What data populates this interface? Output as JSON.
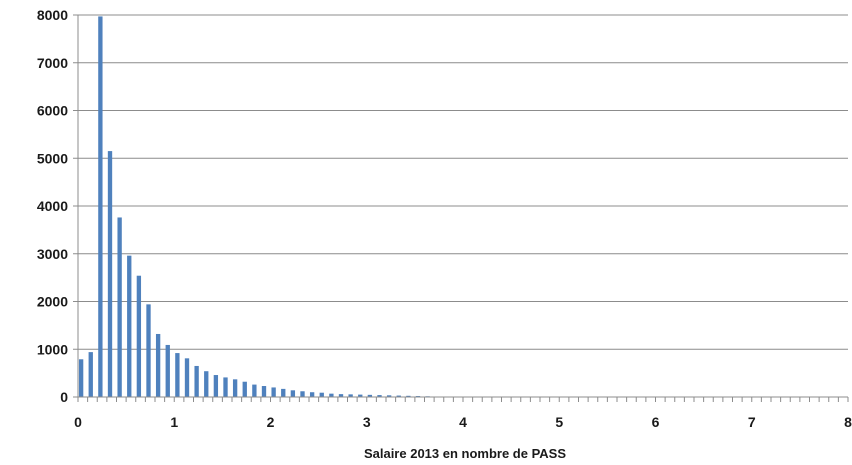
{
  "chart_data": {
    "type": "bar",
    "xlabel": "Salaire 2013  en nombre de PASS",
    "ylabel": "",
    "title": "",
    "ylim": [
      0,
      8000
    ],
    "yticks": [
      0,
      1000,
      2000,
      3000,
      4000,
      5000,
      6000,
      7000,
      8000
    ],
    "xlim": [
      0,
      8
    ],
    "xticks": [
      0,
      1,
      2,
      3,
      4,
      5,
      6,
      7,
      8
    ],
    "bin_width": 0.1,
    "grid": "horizontal",
    "bar_color": "#4f81bd",
    "gridline_color": "#8c8c8c",
    "x": [
      0.0,
      0.1,
      0.2,
      0.3,
      0.4,
      0.5,
      0.6,
      0.7,
      0.8,
      0.9,
      1.0,
      1.1,
      1.2,
      1.3,
      1.4,
      1.5,
      1.6,
      1.7,
      1.8,
      1.9,
      2.0,
      2.1,
      2.2,
      2.3,
      2.4,
      2.5,
      2.6,
      2.7,
      2.8,
      2.9,
      3.0,
      3.1,
      3.2,
      3.3,
      3.4,
      3.5,
      3.6,
      3.7
    ],
    "values": [
      790,
      940,
      7970,
      5150,
      3760,
      2960,
      2540,
      1940,
      1320,
      1090,
      920,
      810,
      650,
      540,
      460,
      410,
      370,
      320,
      260,
      230,
      200,
      170,
      140,
      120,
      100,
      90,
      70,
      60,
      55,
      50,
      45,
      40,
      35,
      30,
      25,
      20,
      15,
      10
    ]
  }
}
